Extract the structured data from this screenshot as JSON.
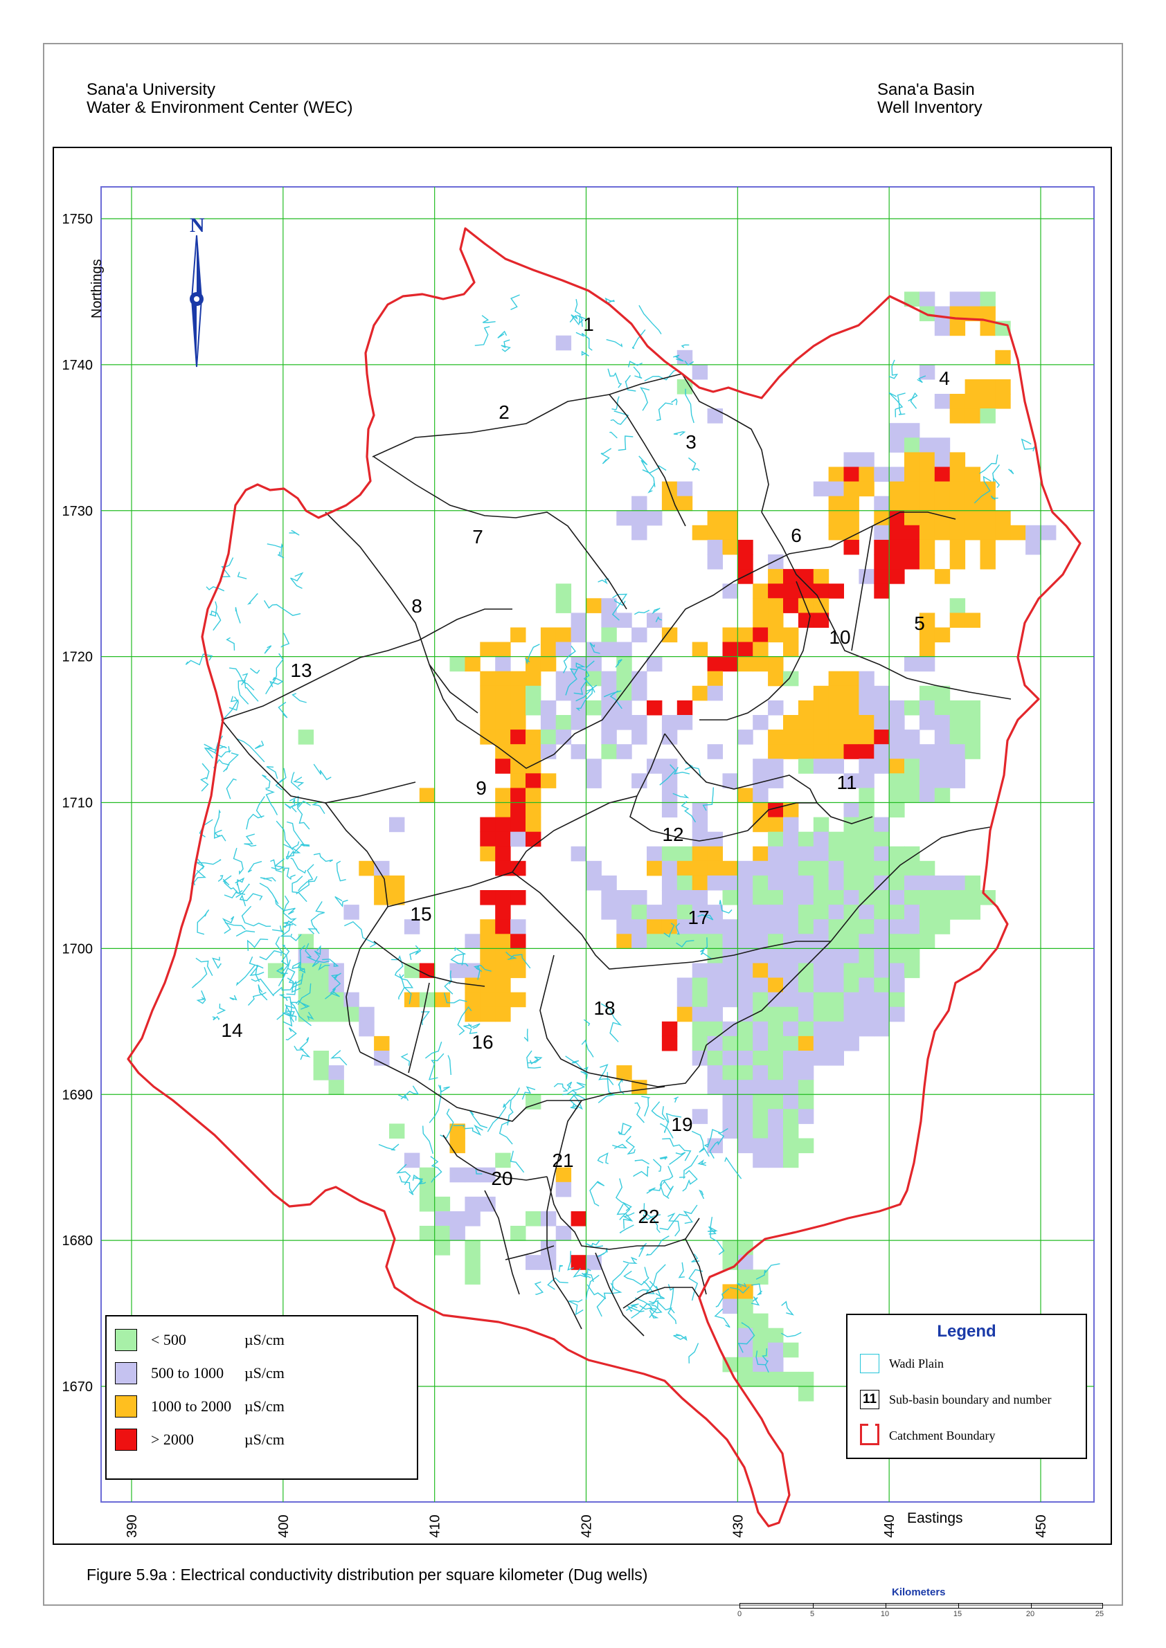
{
  "header": {
    "org_line1": "Sana'a University",
    "org_line2": "Water & Environment Center (WEC)",
    "basin_line1": "Sana'a Basin",
    "basin_line2": "Well Inventory"
  },
  "map": {
    "north_letter": "N",
    "northings_label": "Northings",
    "eastings_label": "Eastings",
    "y_ticks": [
      "1750",
      "1740",
      "1730",
      "1720",
      "1710",
      "1700",
      "1690",
      "1680",
      "1670"
    ],
    "x_ticks": [
      "390",
      "400",
      "410",
      "420",
      "430",
      "440",
      "450"
    ],
    "sub_basins": [
      "1",
      "2",
      "3",
      "4",
      "5",
      "6",
      "7",
      "8",
      "9",
      "10",
      "11",
      "12",
      "13",
      "14",
      "15",
      "16",
      "17",
      "18",
      "19",
      "20",
      "21",
      "22"
    ],
    "colors": {
      "grid": "#22bb22",
      "frame": "#6a6ad6",
      "catchment": "#e3262b",
      "wadi": "#22c5d9",
      "lt500": "#a8f0a8",
      "c500_1000": "#c5c2f0",
      "c1000_2000": "#ffbf1f",
      "gt2000": "#ee1111"
    }
  },
  "conductivity_legend": [
    {
      "range": "< 500",
      "unit": "µS/cm",
      "color": "#a8f0a8"
    },
    {
      "range": "500 to 1000",
      "unit": "µS/cm",
      "color": "#c5c2f0"
    },
    {
      "range": "1000 to 2000",
      "unit": "µS/cm",
      "color": "#ffbf1f"
    },
    {
      "range": "> 2000",
      "unit": "µS/cm",
      "color": "#ee1111"
    }
  ],
  "legend": {
    "title": "Legend",
    "wadi_label": "Wadi Plain",
    "subbasin_number": "11",
    "subbasin_label": "Sub-basin boundary and number",
    "catchment_label": "Catchment Boundary"
  },
  "caption": "Figure 5.9a : Electrical conductivity distribution per square kilometer (Dug wells)",
  "scale": {
    "title": "Kilometers",
    "ticks": [
      "0",
      "5",
      "10",
      "15",
      "20",
      "25"
    ]
  }
}
